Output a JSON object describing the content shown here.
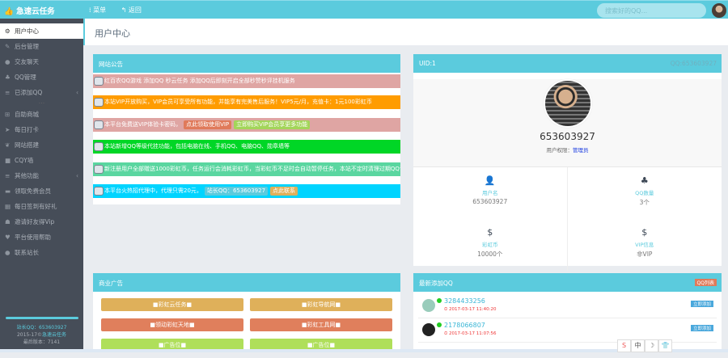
{
  "header": {
    "brand": "急速云任务",
    "menu": "菜单",
    "back": "返回",
    "search_placeholder": "搜索好的QQ..."
  },
  "sidebar": {
    "items": [
      {
        "label": "用户中心",
        "icon": "gear-icon",
        "active": true
      },
      {
        "label": "后台管理",
        "icon": "wrench-icon"
      },
      {
        "label": "交友聊天",
        "icon": "chat-icon"
      },
      {
        "label": "QQ管理",
        "icon": "qq-icon"
      },
      {
        "label": "已添加QQ",
        "icon": "list-icon",
        "chevron": true
      },
      {
        "label": "自助商城",
        "icon": "cart-icon"
      },
      {
        "label": "每日打卡",
        "icon": "send-icon"
      },
      {
        "label": "网站搭建",
        "icon": "leaf-icon"
      },
      {
        "label": "CQY墙",
        "icon": "book-icon"
      },
      {
        "label": "其他功能",
        "icon": "list-icon",
        "chevron": true
      },
      {
        "label": "领取免费会员",
        "icon": "card-icon"
      },
      {
        "label": "每日签到有好礼",
        "icon": "calendar-icon"
      },
      {
        "label": "邀请好友得Vip",
        "icon": "users-icon"
      },
      {
        "label": "平台使用帮助",
        "icon": "heart-icon"
      },
      {
        "label": "联系站长",
        "icon": "comment-icon"
      }
    ],
    "footer": {
      "contact": "站长QQ：653603927",
      "copyright": "2015-17©",
      "copyright_link": "急速云任务",
      "version": "最后版本：7141"
    }
  },
  "page_title": "用户中心",
  "notice": {
    "title": "网站公告",
    "items": [
      {
        "text": "红百农QQ游戏 添加QQ 秒云任务 添加QQ后即刻开启全部秒赞秒评挂机服务",
        "color": "#dfa5a3"
      },
      {
        "text": "本站VIP开放购买，VIP会员可享受所有功能，并能享有完美售后服务！VIP5元/月，充值卡：1元100彩虹币",
        "color": "#ff9c00"
      },
      {
        "text": "本平台免费送VIP体验卡密码，",
        "color": "#dfa5a3",
        "tags": [
          {
            "label": "点此领取使用VIP",
            "color": "#e07a5a"
          },
          {
            "label": "立即购买VIP会员享更多功能",
            "color": "#a3d55a"
          }
        ]
      },
      {
        "text": "本站新增QQ等级代挂功能，包括电脑在线、手机QQ、电脑QQ、勋章墙等",
        "color": "#00d626"
      },
      {
        "text": "新注册用户全部赠送1000彩虹币，任务运行会消耗彩虹币，当彩虹币不足时会自动暂停任务，本站不定时清理过期QQ请谨慎操作",
        "color": "#5ad6a0"
      },
      {
        "text": "本平台火热招代理中，代理只需20元，",
        "color": "#00d4ff",
        "tags": [
          {
            "label": "站长QQ：653603927",
            "color": "#5bcbdd"
          },
          {
            "label": "点此联系",
            "color": "#dfb05a"
          }
        ]
      }
    ]
  },
  "user": {
    "uid": "UID:1",
    "qq_label": "QQ:653603927",
    "name": "653603927",
    "role_label": "用户权限：",
    "role": "管理员",
    "stats": [
      {
        "icon": "user-icon",
        "label": "用户名",
        "value": "653603927"
      },
      {
        "icon": "qq-icon",
        "label": "QQ数量",
        "value": "3个"
      },
      {
        "icon": "dollar-icon",
        "label": "彩虹币",
        "value": "10000个"
      },
      {
        "icon": "dollar-icon",
        "label": "VIP信息",
        "value": "非VIP"
      }
    ]
  },
  "ads": {
    "title": "商业广告",
    "items": [
      {
        "label": "■彩虹云任务■",
        "color": "#dfb05a"
      },
      {
        "label": "■彩虹导航网■",
        "color": "#dfb05a"
      },
      {
        "label": "■领动彩虹天地■",
        "color": "#e07f5c"
      },
      {
        "label": "■彩虹工具网■",
        "color": "#e07f5c"
      },
      {
        "label": "■广告位■",
        "color": "#afdf5a"
      },
      {
        "label": "■广告位■",
        "color": "#afdf5a"
      }
    ]
  },
  "recent": {
    "title": "最新添加QQ",
    "badge": "QQ列表",
    "items": [
      {
        "qq": "3284433256",
        "time": "2017-03-17 11:40:20",
        "action": "立即添加"
      },
      {
        "qq": "2178066807",
        "time": "2017-03-17 11:07:56",
        "action": "立即添加"
      }
    ]
  },
  "ime": [
    "S",
    "中",
    "☽",
    "👕"
  ]
}
